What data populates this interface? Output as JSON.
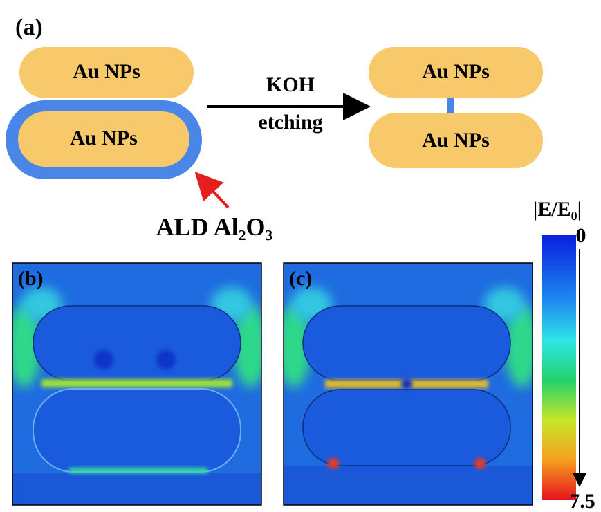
{
  "panel_a": {
    "label": "(a)",
    "before": {
      "top_particle": "Au NPs",
      "bottom_particle": "Au NPs",
      "coating_label": "ALD Al₂O₃"
    },
    "process": {
      "reagent": "KOH",
      "step": "etching"
    },
    "after": {
      "top_particle": "Au NPs",
      "bottom_particle": "Au NPs"
    }
  },
  "panel_b": {
    "label": "(b)"
  },
  "panel_c": {
    "label": "(c)"
  },
  "colorbar": {
    "title": "|E/E₀|",
    "min": 0,
    "max": 7.5
  }
}
